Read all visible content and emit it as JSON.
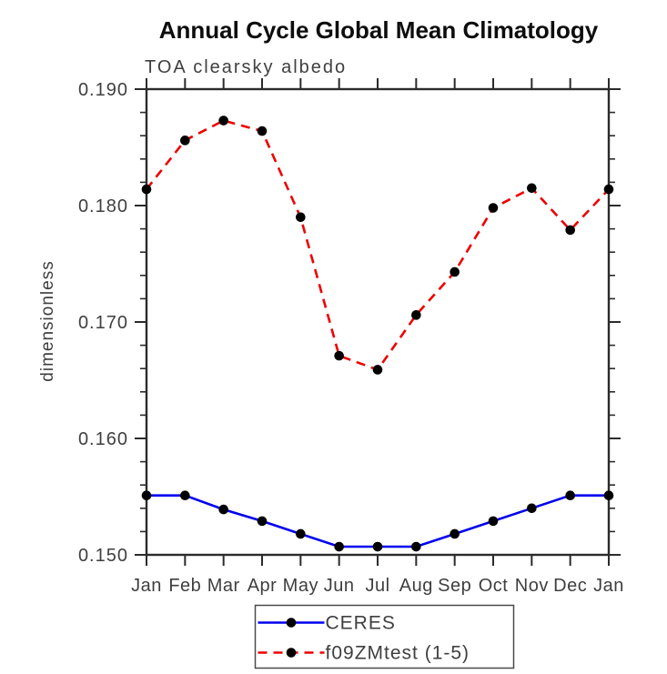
{
  "chart_data": {
    "type": "line",
    "title": "Annual Cycle Global Mean Climatology",
    "subtitle": "TOA clearsky albedo",
    "ylabel": "dimensionless",
    "x_categories": [
      "Jan",
      "Feb",
      "Mar",
      "Apr",
      "May",
      "Jun",
      "Jul",
      "Aug",
      "Sep",
      "Oct",
      "Nov",
      "Dec",
      "Jan"
    ],
    "ylim": [
      0.15,
      0.19
    ],
    "y_major_step": 0.01,
    "y_minor_step": 0.002,
    "y_tick_decimals": 3,
    "grid": false,
    "legend_position": "bottom-center",
    "marker": "black-dot",
    "marker_color": "#000000",
    "axis_color": "#2b2b2b",
    "series": [
      {
        "name": "CERES",
        "color": "#0000ee",
        "style": "solid",
        "values": [
          0.1551,
          0.1551,
          0.1539,
          0.1529,
          0.1518,
          0.1507,
          0.1507,
          0.1507,
          0.1518,
          0.1529,
          0.154,
          0.1551,
          0.1551
        ]
      },
      {
        "name": "f09ZMtest (1-5)",
        "color": "#ee0000",
        "style": "dashed",
        "values": [
          0.1814,
          0.1856,
          0.1873,
          0.1864,
          0.179,
          0.1671,
          0.1659,
          0.1706,
          0.1743,
          0.1798,
          0.1815,
          0.1779,
          0.1814
        ]
      }
    ]
  }
}
